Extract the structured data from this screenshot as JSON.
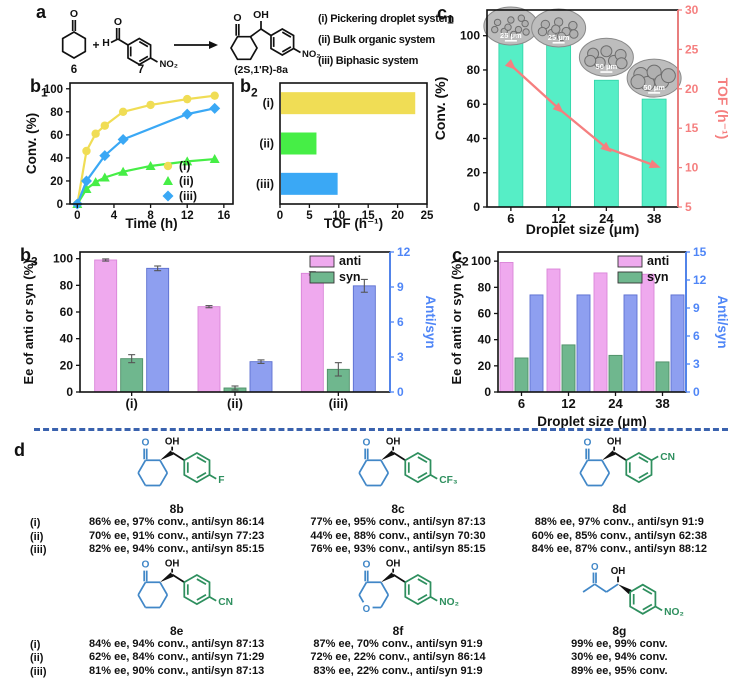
{
  "figure": {
    "panel_a": {
      "label": "a",
      "scheme": {
        "reactant1": "6",
        "reactant2": "7",
        "product": "(2S,1'R)-8a",
        "plus": "+",
        "o": "O",
        "oh": "OH",
        "h": "H",
        "no2": "NO₂"
      },
      "systems": [
        "(i) Pickering droplet system",
        "(ii) Bulk organic system",
        "(iii) Biphasic system"
      ]
    },
    "panel_labels": {
      "b1": "b",
      "b1_sub": "1",
      "b2": "b",
      "b2_sub": "2",
      "b3": "b",
      "b3_sub": "3",
      "c1": "c",
      "c1_sub": "1",
      "c2": "c",
      "c2_sub": "2",
      "d": "d"
    }
  },
  "chart_data": [
    {
      "id": "b1",
      "type": "line",
      "xlabel": "Time (h)",
      "ylabel": "Conv. (%)",
      "xlim": [
        -0.8,
        17
      ],
      "ylim": [
        0,
        105
      ],
      "xticks": [
        0,
        4,
        8,
        12,
        16
      ],
      "yticks": [
        0,
        20,
        40,
        60,
        80,
        100
      ],
      "legend_position": "bottom-right",
      "series": [
        {
          "name": "(i)",
          "marker": "circle",
          "color": "#f0dd55",
          "x": [
            0,
            1,
            2,
            3,
            5,
            8,
            12,
            15
          ],
          "y": [
            0,
            46,
            61,
            68,
            80,
            86,
            91,
            94
          ]
        },
        {
          "name": "(ii)",
          "marker": "triangle",
          "color": "#46ee46",
          "x": [
            0,
            1,
            2,
            3,
            5,
            8,
            12,
            15
          ],
          "y": [
            0,
            13,
            19,
            23,
            28,
            33,
            37,
            39
          ]
        },
        {
          "name": "(iii)",
          "marker": "diamond",
          "color": "#3aa8f5",
          "x": [
            0,
            1,
            3,
            5,
            12,
            15
          ],
          "y": [
            0,
            20,
            42,
            56,
            78,
            83
          ]
        }
      ]
    },
    {
      "id": "b2",
      "type": "barh",
      "xlabel": "TOF (h⁻¹)",
      "categories": [
        "(i)",
        "(ii)",
        "(iii)"
      ],
      "values": [
        23,
        6.2,
        9.8
      ],
      "colors": [
        "#f0dd55",
        "#46ee46",
        "#3aa8f5"
      ],
      "xlim": [
        0,
        25
      ],
      "xticks": [
        0,
        5,
        10,
        15,
        20,
        25
      ]
    },
    {
      "id": "c1",
      "type": "bar+line",
      "xlabel": "Droplet size (μm)",
      "ylabel_left": "Conv. (%)",
      "ylabel_right": "TOF (h⁻¹)",
      "categories": [
        "6",
        "12",
        "24",
        "38"
      ],
      "bar_values": [
        97,
        95,
        74,
        63
      ],
      "bar_color": "#56eec6",
      "line_values": [
        23,
        17.5,
        12.5,
        10.3
      ],
      "line_color": "#f57f7f",
      "right_axis_color": "#f57f7f",
      "ylim_left": [
        0,
        115
      ],
      "yticks_left": [
        0,
        20,
        40,
        60,
        80,
        100
      ],
      "ylim_right": [
        5,
        30
      ],
      "yticks_right": [
        5,
        10,
        15,
        20,
        25,
        30
      ],
      "insets": [
        "25 μm",
        "25 μm",
        "50 μm",
        "50 μm"
      ]
    },
    {
      "id": "b3",
      "type": "grouped-bar",
      "ylabel_left": "Ee of anti or syn (%)",
      "ylabel_right": "Anti/syn",
      "right_axis_color": "#4f86f7",
      "categories": [
        "(i)",
        "(ii)",
        "(iii)"
      ],
      "ylim_left": [
        0,
        105
      ],
      "yticks_left": [
        0,
        20,
        40,
        60,
        80,
        100
      ],
      "ylim_right": [
        0,
        12
      ],
      "yticks_right": [
        0,
        3,
        6,
        9,
        12
      ],
      "legend": [
        "anti",
        "syn"
      ],
      "series": [
        {
          "name": "anti",
          "axis": "left",
          "color": "#efa9ee",
          "stroke": "#d985d8",
          "values": [
            99,
            64,
            89
          ],
          "errors": [
            0.8,
            0.8,
            1.2
          ]
        },
        {
          "name": "syn",
          "axis": "left",
          "color": "#6fb78e",
          "stroke": "#4e8f68",
          "values": [
            25,
            3,
            17
          ],
          "errors": [
            3,
            1.5,
            5
          ]
        },
        {
          "name": "Anti/syn",
          "axis": "right",
          "color": "#8e9ff0",
          "stroke": "#5c6fd0",
          "values": [
            10.6,
            2.6,
            9.1
          ],
          "errors": [
            0.2,
            0.15,
            0.55
          ]
        }
      ]
    },
    {
      "id": "c2",
      "type": "grouped-bar",
      "xlabel": "Droplet size (μm)",
      "ylabel_left": "Ee of anti or syn (%)",
      "ylabel_right": "Anti/syn",
      "right_axis_color": "#4f86f7",
      "categories": [
        "6",
        "12",
        "24",
        "38"
      ],
      "ylim_left": [
        0,
        107
      ],
      "yticks_left": [
        0,
        20,
        40,
        60,
        80,
        100
      ],
      "ylim_right": [
        0,
        15
      ],
      "yticks_right": [
        0,
        3,
        6,
        9,
        12,
        15
      ],
      "legend": [
        "anti",
        "syn"
      ],
      "series": [
        {
          "name": "anti",
          "axis": "left",
          "color": "#efa9ee",
          "stroke": "#d985d8",
          "values": [
            99,
            94,
            91,
            90
          ]
        },
        {
          "name": "syn",
          "axis": "left",
          "color": "#6fb78e",
          "stroke": "#4e8f68",
          "values": [
            26,
            36,
            28,
            23
          ]
        },
        {
          "name": "Anti/syn",
          "axis": "right",
          "color": "#8e9ff0",
          "stroke": "#5c6fd0",
          "values": [
            10.4,
            10.4,
            10.4,
            10.4
          ]
        }
      ]
    }
  ],
  "panel_d": {
    "row_labels": [
      "(i)",
      "(ii)",
      "(iii)"
    ],
    "atom_labels": {
      "o": "O",
      "oh": "OH"
    },
    "compounds": [
      {
        "name": "8b",
        "core": "cyclohexanone",
        "sub": "F",
        "sub_pos": "para",
        "rows": [
          "86% ee, 97% conv., anti/syn 86:14",
          "70% ee, 91% conv., anti/syn 77:23",
          "82% ee, 94% conv., anti/syn 85:15"
        ]
      },
      {
        "name": "8c",
        "core": "cyclohexanone",
        "sub": "CF₃",
        "sub_pos": "para",
        "rows": [
          "77% ee, 95% conv., anti/syn 87:13",
          "44% ee, 88% conv., anti/syn 70:30",
          "76% ee, 93% conv., anti/syn 85:15"
        ]
      },
      {
        "name": "8d",
        "core": "cyclohexanone",
        "sub": "CN",
        "sub_pos": "meta",
        "rows": [
          "88% ee, 97% conv., anti/syn 91:9",
          "60% ee, 85% conv., anti/syn 62:38",
          "84% ee, 87% conv., anti/syn 88:12"
        ]
      },
      {
        "name": "8e",
        "core": "cyclohexanone",
        "sub": "CN",
        "sub_pos": "para",
        "rows": [
          "84% ee, 94% conv., anti/syn 87:13",
          "62% ee, 84% conv., anti/syn 71:29",
          "81% ee, 90% conv., anti/syn 87:13"
        ]
      },
      {
        "name": "8f",
        "core": "pyranone",
        "sub": "NO₂",
        "sub_pos": "para",
        "rows": [
          "87% ee, 70% conv., anti/syn 91:9",
          "72% ee, 22% conv., anti/syn 86:14",
          "83% ee, 22% conv., anti/syn 91:9"
        ]
      },
      {
        "name": "8g",
        "core": "acyclic",
        "sub": "NO₂",
        "sub_pos": "para",
        "rows": [
          "99% ee, 99% conv.",
          "30% ee, 94% conv.",
          "89% ee, 95% conv."
        ]
      }
    ]
  }
}
